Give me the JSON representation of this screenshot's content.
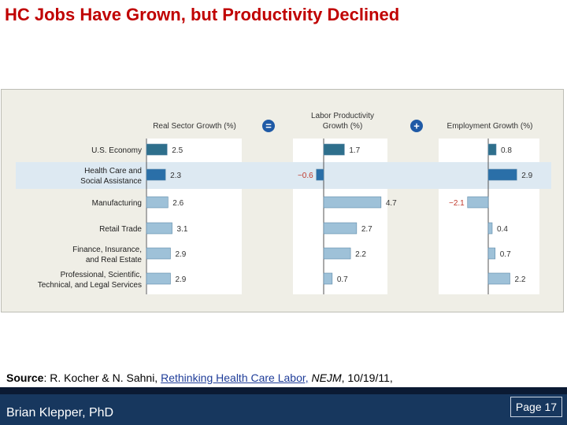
{
  "slide": {
    "title": "HC Jobs Have Grown, but Productivity Declined",
    "source_label": "Source",
    "source_prefix": ": R. Kocher & N. Sahni, ",
    "source_link": "Rethinking Health Care Labor,",
    "source_journal": " NEJM",
    "source_suffix": ", 10/19/11,",
    "author": "Brian Klepper, PhD",
    "page": "Page 17"
  },
  "colors": {
    "bar_highlight": "#2a6fa8",
    "bar_normal": "#9ec1d8",
    "bar_economy": "#2e6f8c",
    "operator_circle": "#1f5aa6",
    "highlight_band": "#dde9f2",
    "footer": "#17375e"
  },
  "chart_data": {
    "type": "bar",
    "orientation": "horizontal",
    "categories": [
      [
        "U.S. Economy"
      ],
      [
        "Health Care and",
        "Social Assistance"
      ],
      [
        "Manufacturing"
      ],
      [
        "Retail Trade"
      ],
      [
        "Finance, Insurance,",
        "and Real Estate"
      ],
      [
        "Professional, Scientific,",
        "Technical, and Legal Services"
      ]
    ],
    "highlight_index": 1,
    "operators": [
      "=",
      "+"
    ],
    "series": [
      {
        "name": "Real Sector Growth (%)",
        "title_lines": [
          "Real Sector Growth (%)"
        ],
        "values": [
          2.5,
          2.3,
          2.6,
          3.1,
          2.9,
          2.9
        ],
        "labels": [
          "2.5",
          "2.3",
          "2.6",
          "3.1",
          "2.9",
          "2.9"
        ]
      },
      {
        "name": "Labor Productivity Growth (%)",
        "title_lines": [
          "Labor Productivity",
          "Growth (%)"
        ],
        "values": [
          1.7,
          -0.6,
          4.7,
          2.7,
          2.2,
          0.7
        ],
        "labels": [
          "1.7",
          "−0.6",
          "4.7",
          "2.7",
          "2.2",
          "0.7"
        ]
      },
      {
        "name": "Employment Growth (%)",
        "title_lines": [
          "Employment Growth (%)"
        ],
        "values": [
          0.8,
          2.9,
          -2.1,
          0.4,
          0.7,
          2.2
        ],
        "labels": [
          "0.8",
          "2.9",
          "−2.1",
          "0.4",
          "0.7",
          "2.2"
        ]
      }
    ]
  }
}
